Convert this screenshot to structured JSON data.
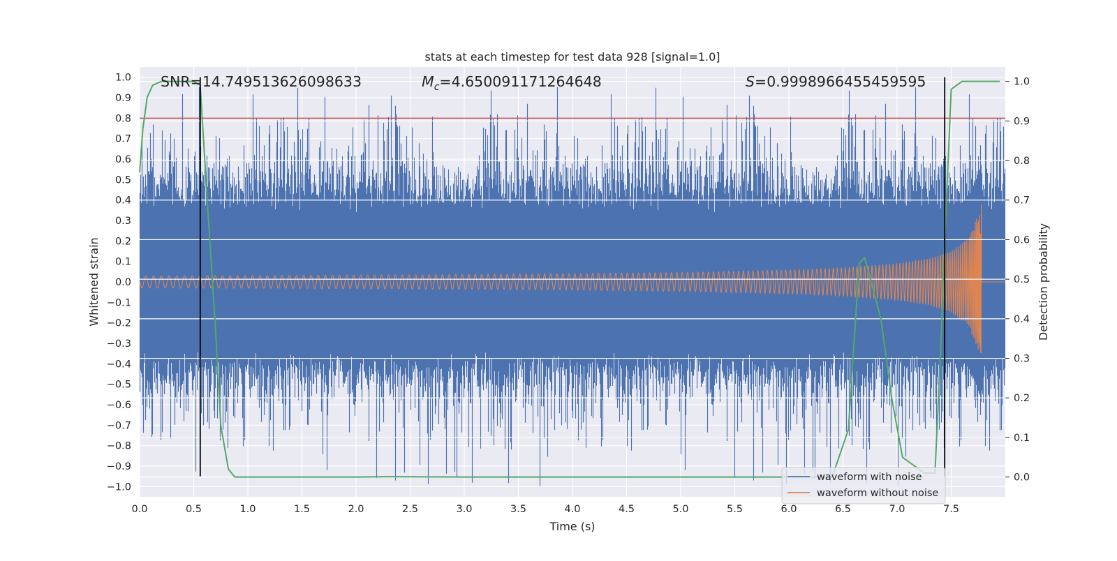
{
  "chart_data": {
    "type": "line",
    "title": "stats at each timestep for test data 928 [signal=1.0]",
    "xlabel": "Time (s)",
    "ylabel": "Whitened strain",
    "y2label": "Detection probability",
    "xlim": [
      0,
      8.0
    ],
    "ylim": [
      -1.05,
      1.05
    ],
    "y2lim": [
      -0.05,
      1.0364
    ],
    "x_ticks": [
      "0.0",
      "0.5",
      "1.0",
      "1.5",
      "2.0",
      "2.5",
      "3.0",
      "3.5",
      "4.0",
      "4.5",
      "5.0",
      "5.5",
      "6.0",
      "6.5",
      "7.0",
      "7.5"
    ],
    "y_ticks": [
      "1.0",
      "0.9",
      "0.8",
      "0.7",
      "0.6",
      "0.5",
      "0.4",
      "0.3",
      "0.2",
      "0.1",
      "0.0",
      "−0.1",
      "−0.2",
      "−0.3",
      "−0.4",
      "−0.5",
      "−0.6",
      "−0.7",
      "−0.8",
      "−0.9",
      "−1.0"
    ],
    "y2_ticks": [
      "1.0",
      "0.9",
      "0.8",
      "0.7",
      "0.6",
      "0.5",
      "0.4",
      "0.3",
      "0.2",
      "0.1",
      "0.0"
    ],
    "annotations": {
      "snr": "SNR=14.749513626098633",
      "mc_symbol": "M",
      "mc_sub": "c",
      "mc_value": "=4.650091171264648",
      "s_symbol": "S",
      "s_value": "=0.9998966455459595"
    },
    "threshold": {
      "y": 0.8,
      "color": "#c44e52"
    },
    "vlines": [
      0.56,
      7.44
    ],
    "colors": {
      "noise": "#4c72b0",
      "clean": "#dd8452",
      "prob": "#55a868",
      "background": "#eaeaf2"
    },
    "series": [
      {
        "name": "waveform with noise",
        "description_points": "dense noisy strain series sampled over 0-8 s, amplitude mostly within ±0.6 with spikes near ±1.0"
      },
      {
        "name": "waveform without noise",
        "envelope": {
          "x": [
            0.0,
            1.0,
            2.0,
            3.0,
            4.0,
            5.0,
            6.0,
            6.5,
            7.0,
            7.3,
            7.5,
            7.65,
            7.72,
            7.78
          ],
          "amp": [
            0.03,
            0.031,
            0.033,
            0.036,
            0.04,
            0.046,
            0.058,
            0.068,
            0.09,
            0.115,
            0.15,
            0.21,
            0.29,
            0.38
          ]
        },
        "merger_time": 7.78
      },
      {
        "name": "detection probability",
        "axis": "right",
        "x": [
          0.0,
          0.03,
          0.07,
          0.12,
          0.2,
          0.3,
          0.45,
          0.5,
          0.56,
          0.62,
          0.7,
          0.75,
          0.82,
          0.88,
          1.0,
          2.0,
          2.3,
          3.0,
          4.0,
          5.0,
          6.0,
          6.4,
          6.55,
          6.6,
          6.65,
          6.7,
          6.85,
          6.95,
          7.05,
          7.25,
          7.35,
          7.4,
          7.44,
          7.48,
          7.5,
          7.6,
          7.8,
          7.95
        ],
        "y": [
          0.77,
          0.88,
          0.96,
          0.99,
          1.0,
          1.0,
          1.0,
          1.0,
          0.99,
          0.72,
          0.38,
          0.13,
          0.02,
          0.0,
          0.0,
          0.0,
          0.001,
          0.0,
          0.0,
          0.0,
          0.0,
          0.0,
          0.12,
          0.33,
          0.54,
          0.555,
          0.4,
          0.2,
          0.05,
          0.01,
          0.01,
          0.3,
          0.6,
          0.85,
          0.98,
          1.0,
          1.0,
          1.0
        ]
      }
    ],
    "legend": {
      "position": "bottom-right",
      "entries": [
        {
          "label": "waveform with noise",
          "color": "#4c72b0"
        },
        {
          "label": "waveform without noise",
          "color": "#dd8452"
        }
      ]
    },
    "grid": true
  }
}
